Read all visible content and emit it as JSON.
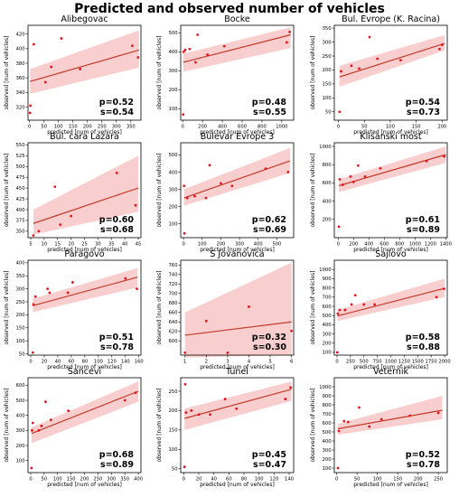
{
  "figure": {
    "title": "Predicted and observed number of vehicles"
  },
  "chart_data": [
    {
      "type": "scatter",
      "title": "Alibegovac",
      "xlabel": "predicted [num of vehicles]",
      "ylabel": "observed [num of vehicles]",
      "xlim": [
        -5,
        385
      ],
      "ylim": [
        302,
        432
      ],
      "xticks": [
        0,
        50,
        100,
        150,
        200,
        250,
        300,
        350
      ],
      "yticks": [
        320,
        340,
        360,
        380,
        400,
        420
      ],
      "points": [
        [
          2,
          312
        ],
        [
          3,
          322
        ],
        [
          15,
          406
        ],
        [
          55,
          354
        ],
        [
          75,
          375
        ],
        [
          110,
          414
        ],
        [
          175,
          372
        ],
        [
          355,
          404
        ],
        [
          375,
          388
        ]
      ],
      "fit": [
        [
          2,
          355
        ],
        [
          378,
          398
        ]
      ],
      "band": {
        "x": [
          2,
          378
        ],
        "lower": [
          338,
          374
        ],
        "upper": [
          372,
          425
        ]
      },
      "p_label": "p=0.52",
      "s_label": "s=0.54"
    },
    {
      "type": "scatter",
      "title": "Bocke",
      "xlabel": "predicted [num of vehicles]",
      "ylabel": "observed [num of vehicles]",
      "xlim": [
        -20,
        1120
      ],
      "ylim": [
        40,
        540
      ],
      "xticks": [
        0,
        200,
        400,
        600,
        800,
        1000
      ],
      "yticks": [
        100,
        200,
        300,
        400,
        500
      ],
      "points": [
        [
          5,
          70
        ],
        [
          10,
          400
        ],
        [
          25,
          410
        ],
        [
          70,
          415
        ],
        [
          130,
          345
        ],
        [
          150,
          490
        ],
        [
          250,
          385
        ],
        [
          420,
          430
        ],
        [
          1050,
          450
        ],
        [
          1080,
          505
        ]
      ],
      "fit": [
        [
          5,
          345
        ],
        [
          1090,
          490
        ]
      ],
      "band": {
        "x": [
          5,
          1090
        ],
        "lower": [
          295,
          420
        ],
        "upper": [
          390,
          530
        ]
      },
      "p_label": "p=0.48",
      "s_label": "s=0.55"
    },
    {
      "type": "scatter",
      "title": "Bul. Evrope (K. Racina)",
      "xlabel": "predicted [num of vehicles]",
      "ylabel": "observed [num of vehicles]",
      "xlim": [
        -8,
        210
      ],
      "ylim": [
        20,
        360
      ],
      "xticks": [
        0,
        50,
        100,
        150,
        200
      ],
      "yticks": [
        50,
        100,
        150,
        200,
        250,
        300,
        350
      ],
      "points": [
        [
          2,
          50
        ],
        [
          5,
          195
        ],
        [
          25,
          215
        ],
        [
          40,
          205
        ],
        [
          60,
          318
        ],
        [
          75,
          240
        ],
        [
          120,
          235
        ],
        [
          195,
          275
        ],
        [
          200,
          290
        ]
      ],
      "fit": [
        [
          2,
          175
        ],
        [
          205,
          295
        ]
      ],
      "band": {
        "x": [
          2,
          205
        ],
        "lower": [
          140,
          270
        ],
        "upper": [
          215,
          325
        ]
      },
      "p_label": "p=0.54",
      "s_label": "s=0.73"
    },
    {
      "type": "scatter",
      "title": "Bul. cara Lazara",
      "xlabel": "predicted [num of vehicles]",
      "ylabel": "observed [num of vehicles]",
      "xlim": [
        4,
        46
      ],
      "ylim": [
        335,
        555
      ],
      "xticks": [
        5,
        10,
        15,
        20,
        25,
        30,
        35,
        40,
        45
      ],
      "yticks": [
        350,
        375,
        400,
        425,
        450,
        475,
        500,
        525,
        550
      ],
      "points": [
        [
          6,
          340
        ],
        [
          8,
          350
        ],
        [
          14,
          453
        ],
        [
          16,
          365
        ],
        [
          20,
          385
        ],
        [
          37,
          485
        ],
        [
          44,
          410
        ]
      ],
      "fit": [
        [
          6,
          368
        ],
        [
          45,
          450
        ]
      ],
      "band": {
        "x": [
          6,
          45
        ],
        "lower": [
          342,
          395
        ],
        "upper": [
          400,
          525
        ]
      },
      "p_label": "p=0.60",
      "s_label": "s=0.68"
    },
    {
      "type": "scatter",
      "title": "Bulevar Evrope 3",
      "xlabel": "predicted [num of vehicles]",
      "ylabel": "observed [num of vehicles]",
      "xlim": [
        -15,
        590
      ],
      "ylim": [
        20,
        570
      ],
      "xticks": [
        0,
        100,
        200,
        300,
        400,
        500
      ],
      "yticks": [
        100,
        200,
        300,
        400,
        500
      ],
      "points": [
        [
          3,
          320
        ],
        [
          5,
          45
        ],
        [
          20,
          250
        ],
        [
          60,
          260
        ],
        [
          120,
          250
        ],
        [
          140,
          440
        ],
        [
          200,
          335
        ],
        [
          260,
          320
        ],
        [
          440,
          420
        ],
        [
          560,
          400
        ]
      ],
      "fit": [
        [
          3,
          250
        ],
        [
          570,
          465
        ]
      ],
      "band": {
        "x": [
          3,
          570
        ],
        "lower": [
          205,
          395
        ],
        "upper": [
          300,
          540
        ]
      },
      "p_label": "p=0.62",
      "s_label": "s=0.69"
    },
    {
      "type": "scatter",
      "title": "Klisanski most",
      "xlabel": "predicted [num of vehicles]",
      "ylabel": "observed [num of vehicles]",
      "xlim": [
        -50,
        1420
      ],
      "ylim": [
        0,
        1040
      ],
      "xticks": [
        0,
        200,
        400,
        600,
        800,
        1000,
        1200,
        1400
      ],
      "yticks": [
        200,
        400,
        600,
        800,
        1000
      ],
      "points": [
        [
          10,
          120
        ],
        [
          20,
          640
        ],
        [
          60,
          580
        ],
        [
          160,
          670
        ],
        [
          200,
          610
        ],
        [
          260,
          790
        ],
        [
          350,
          670
        ],
        [
          550,
          760
        ],
        [
          1150,
          840
        ],
        [
          1380,
          890
        ]
      ],
      "fit": [
        [
          10,
          570
        ],
        [
          1400,
          910
        ]
      ],
      "band": {
        "x": [
          10,
          1400
        ],
        "lower": [
          500,
          820
        ],
        "upper": [
          640,
          1000
        ]
      },
      "p_label": "p=0.61",
      "s_label": "s=0.89"
    },
    {
      "type": "scatter",
      "title": "Paragovo",
      "xlabel": "predicted [num of vehicles]",
      "ylabel": "observed [num of vehicles]",
      "xlim": [
        -4,
        163
      ],
      "ylim": [
        45,
        410
      ],
      "xticks": [
        0,
        20,
        40,
        60,
        80,
        100,
        120,
        140,
        160
      ],
      "yticks": [
        50,
        100,
        150,
        200,
        250,
        300,
        350,
        400
      ],
      "points": [
        [
          3,
          55
        ],
        [
          4,
          240
        ],
        [
          7,
          270
        ],
        [
          25,
          300
        ],
        [
          28,
          285
        ],
        [
          55,
          285
        ],
        [
          62,
          325
        ],
        [
          140,
          340
        ],
        [
          157,
          300
        ]
      ],
      "fit": [
        [
          3,
          235
        ],
        [
          158,
          345
        ]
      ],
      "band": {
        "x": [
          3,
          158
        ],
        "lower": [
          210,
          305
        ],
        "upper": [
          262,
          380
        ]
      },
      "p_label": "p=0.51",
      "s_label": "s=0.78"
    },
    {
      "type": "scatter",
      "title": "S Jovanovica",
      "xlabel": "predicted [num of vehicles]",
      "ylabel": "observed [num of vehicles]",
      "xlim": [
        0.8,
        6.1
      ],
      "ylim": [
        570,
        770
      ],
      "xticks": [
        1,
        2,
        3,
        4,
        5,
        6
      ],
      "yticks": [
        600,
        620,
        640,
        660,
        680,
        700,
        720,
        740,
        760
      ],
      "points": [
        [
          1,
          575
        ],
        [
          2,
          642
        ],
        [
          3,
          575
        ],
        [
          4,
          672
        ],
        [
          6,
          621
        ]
      ],
      "fit": [
        [
          1,
          612
        ],
        [
          6,
          640
        ]
      ],
      "band": {
        "x": [
          1,
          6
        ],
        "lower": [
          565,
          570
        ],
        "upper": [
          660,
          765
        ]
      },
      "p_label": "p=0.32",
      "s_label": "s=0.30"
    },
    {
      "type": "scatter",
      "title": "Sajlovo",
      "xlabel": "predicted [num of vehicles]",
      "ylabel": "observed [num of vehicles]",
      "xlim": [
        -50,
        2050
      ],
      "ylim": [
        70,
        1100
      ],
      "xticks": [
        0,
        250,
        500,
        750,
        1000,
        1250,
        1500,
        1750,
        2000
      ],
      "yticks": [
        100,
        200,
        300,
        400,
        500,
        600,
        700,
        800,
        900,
        1000
      ],
      "points": [
        [
          5,
          100
        ],
        [
          15,
          520
        ],
        [
          50,
          560
        ],
        [
          150,
          560
        ],
        [
          270,
          620
        ],
        [
          340,
          720
        ],
        [
          500,
          620
        ],
        [
          700,
          620
        ],
        [
          1850,
          700
        ],
        [
          1990,
          790
        ]
      ],
      "fit": [
        [
          5,
          495
        ],
        [
          2000,
          795
        ]
      ],
      "band": {
        "x": [
          5,
          2000
        ],
        "lower": [
          440,
          700
        ],
        "upper": [
          560,
          900
        ]
      },
      "p_label": "p=0.58",
      "s_label": "s=0.88"
    },
    {
      "type": "scatter",
      "title": "Sancevi",
      "xlabel": "predicted [num of vehicles]",
      "ylabel": "observed [num of vehicles]",
      "xlim": [
        -10,
        410
      ],
      "ylim": [
        20,
        650
      ],
      "xticks": [
        0,
        50,
        100,
        150,
        200,
        250,
        300,
        350,
        400
      ],
      "yticks": [
        100,
        200,
        300,
        400,
        500,
        600
      ],
      "points": [
        [
          3,
          50
        ],
        [
          5,
          300
        ],
        [
          8,
          350
        ],
        [
          30,
          300
        ],
        [
          40,
          330
        ],
        [
          55,
          490
        ],
        [
          75,
          370
        ],
        [
          140,
          430
        ],
        [
          350,
          500
        ],
        [
          390,
          550
        ]
      ],
      "fit": [
        [
          3,
          280
        ],
        [
          400,
          560
        ]
      ],
      "band": {
        "x": [
          3,
          400
        ],
        "lower": [
          215,
          490
        ],
        "upper": [
          320,
          625
        ]
      },
      "p_label": "p=0.68",
      "s_label": "s=0.89"
    },
    {
      "type": "scatter",
      "title": "Tunel",
      "xlabel": "predicted [num of vehicles]",
      "ylabel": "observed [num of vehicles]",
      "xlim": [
        -4,
        146
      ],
      "ylim": [
        40,
        285
      ],
      "xticks": [
        0,
        20,
        40,
        60,
        80,
        100,
        120,
        140
      ],
      "yticks": [
        50,
        100,
        150,
        200,
        250
      ],
      "points": [
        [
          1,
          55
        ],
        [
          2,
          268
        ],
        [
          3,
          195
        ],
        [
          10,
          200
        ],
        [
          20,
          190
        ],
        [
          35,
          190
        ],
        [
          55,
          230
        ],
        [
          70,
          205
        ],
        [
          135,
          230
        ],
        [
          142,
          260
        ]
      ],
      "fit": [
        [
          1,
          180
        ],
        [
          143,
          255
        ]
      ],
      "band": {
        "x": [
          1,
          143
        ],
        "lower": [
          150,
          225
        ],
        "upper": [
          205,
          275
        ]
      },
      "p_label": "p=0.45",
      "s_label": "s=0.47"
    },
    {
      "type": "scatter",
      "title": "Veternik",
      "xlabel": "predicted [num of vehicles]",
      "ylabel": "observed [num of vehicles]",
      "xlim": [
        -6,
        272
      ],
      "ylim": [
        50,
        1100
      ],
      "xticks": [
        0,
        50,
        100,
        150,
        200,
        250
      ],
      "yticks": [
        100,
        200,
        300,
        400,
        500,
        600,
        700,
        800,
        900,
        1000
      ],
      "points": [
        [
          3,
          100
        ],
        [
          5,
          510
        ],
        [
          18,
          620
        ],
        [
          28,
          610
        ],
        [
          55,
          770
        ],
        [
          80,
          560
        ],
        [
          110,
          640
        ],
        [
          180,
          680
        ],
        [
          250,
          710
        ]
      ],
      "fit": [
        [
          3,
          535
        ],
        [
          260,
          740
        ]
      ],
      "band": {
        "x": [
          3,
          260
        ],
        "lower": [
          470,
          640
        ],
        "upper": [
          590,
          900
        ]
      },
      "p_label": "p=0.52",
      "s_label": "s=0.78"
    }
  ]
}
